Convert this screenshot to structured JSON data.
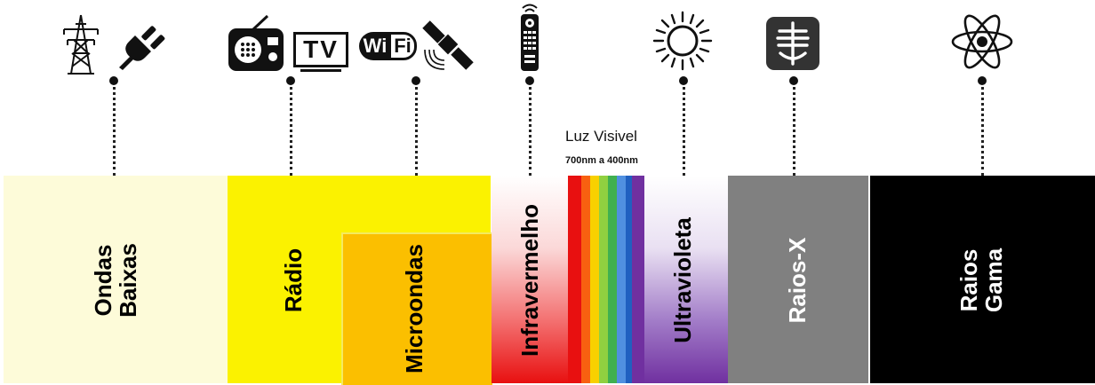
{
  "bands": {
    "ondas_baixas": {
      "line1": "Ondas",
      "line2": "Baixas",
      "color": "#fdfbd9"
    },
    "radio": {
      "label": "Rádio",
      "color": "#fbf200"
    },
    "microondas": {
      "label": "Microondas",
      "color": "#fbbf00"
    },
    "infravermelho": {
      "label": "Infravermelho",
      "color": "#e81010"
    },
    "ultravioleta": {
      "label": "Ultravioleta",
      "color": "#7030a0"
    },
    "raios_x": {
      "label": "Raios-X",
      "color": "#808080"
    },
    "raios_gama": {
      "line1": "Raios",
      "line2": "Gama",
      "color": "#000000"
    }
  },
  "visible": {
    "title": "Luz Visivel",
    "range": "700nm a 400nm",
    "colors": [
      "#e81010",
      "#f86010",
      "#f8d000",
      "#90d040",
      "#40b050",
      "#5090e0",
      "#2060c0",
      "#7030a0"
    ]
  },
  "icons": {
    "tv_text": "TV",
    "wifi_left": "Wi",
    "wifi_right": "Fi"
  }
}
